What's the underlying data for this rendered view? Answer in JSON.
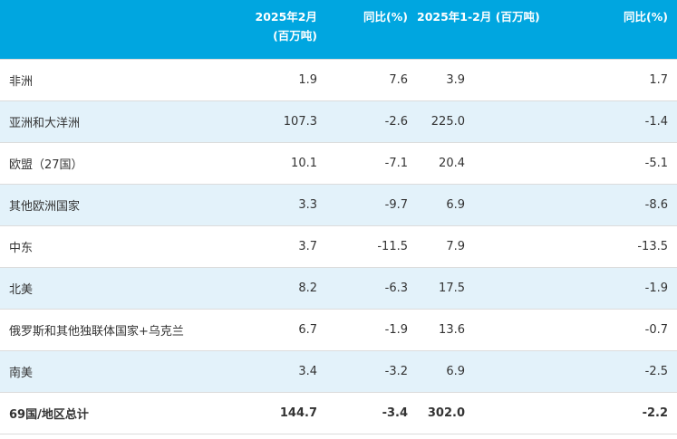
{
  "header": {
    "col1_line1": "2025年2月",
    "col1_line2": "(百万吨)",
    "col2": "同比(%)",
    "col3": "2025年1-2月 (百万吨)",
    "col4": "同比(%)"
  },
  "rows": [
    {
      "region": "非洲",
      "feb": "1.9",
      "feb_yoy": "7.6",
      "ytd": "3.9",
      "ytd_yoy": "1.7"
    },
    {
      "region": "亚洲和大洋洲",
      "feb": "107.3",
      "feb_yoy": "-2.6",
      "ytd": "225.0",
      "ytd_yoy": "-1.4"
    },
    {
      "region": "欧盟（27国）",
      "feb": "10.1",
      "feb_yoy": "-7.1",
      "ytd": "20.4",
      "ytd_yoy": "-5.1"
    },
    {
      "region": "其他欧洲国家",
      "feb": "3.3",
      "feb_yoy": "-9.7",
      "ytd": "6.9",
      "ytd_yoy": "-8.6"
    },
    {
      "region": "中东",
      "feb": "3.7",
      "feb_yoy": "-11.5",
      "ytd": "7.9",
      "ytd_yoy": "-13.5"
    },
    {
      "region": "北美",
      "feb": "8.2",
      "feb_yoy": "-6.3",
      "ytd": "17.5",
      "ytd_yoy": "-1.9"
    },
    {
      "region": "俄罗斯和其他独联体国家+乌克兰",
      "feb": "6.7",
      "feb_yoy": "-1.9",
      "ytd": "13.6",
      "ytd_yoy": "-0.7"
    },
    {
      "region": "南美",
      "feb": "3.4",
      "feb_yoy": "-3.2",
      "ytd": "6.9",
      "ytd_yoy": "-2.5"
    }
  ],
  "total": {
    "region": "69国/地区总计",
    "feb": "144.7",
    "feb_yoy": "-3.4",
    "ytd": "302.0",
    "ytd_yoy": "-2.2"
  },
  "colors": {
    "header_bg": "#00a6e0",
    "header_text": "#ffffff",
    "row_alt_bg": "#e3f2fa",
    "row_bg": "#ffffff",
    "text": "#333333"
  }
}
